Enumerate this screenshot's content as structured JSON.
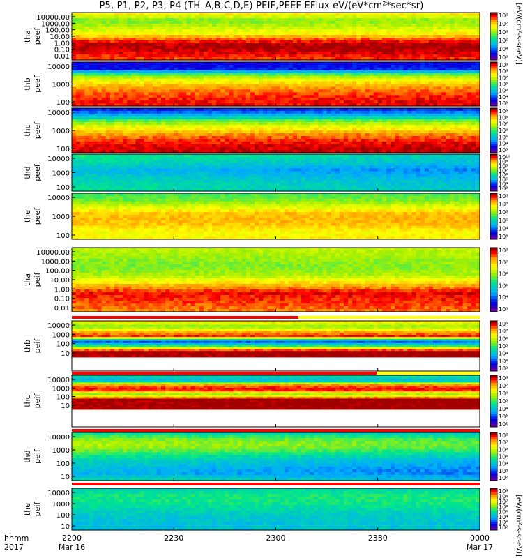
{
  "title": "P5, P1, P2, P3, P4 (TH–A,B,C,D,E) PEIF,PEEF EFlux eV/(eV*cm²*sec*sr)",
  "units_label": "[eV/(cm²-s-sr-eV)]",
  "x_axis": {
    "corner_labels": [
      "hhmm",
      "2017"
    ],
    "ticks": [
      {
        "time": "2200",
        "date": "Mar 16"
      },
      {
        "time": "2230",
        "date": ""
      },
      {
        "time": "2300",
        "date": ""
      },
      {
        "time": "2330",
        "date": ""
      },
      {
        "time": "0000",
        "date": "Mar 17"
      }
    ]
  },
  "chart_data": [
    {
      "type": "heatmap",
      "probe": "tha",
      "quantity": "peef",
      "ylabel": [
        "tha",
        "peef"
      ],
      "yscale": "log",
      "yticks": [
        "10000.00",
        "1000.00",
        "100.00",
        "10.00",
        "1.00",
        "0.10",
        "0.01"
      ],
      "colorbar_ticks": [
        "10⁸",
        "10⁷",
        "10⁶",
        "10⁵",
        "10⁴",
        "10³"
      ],
      "x_range": [
        "2200 Mar 16",
        "0000 Mar 17"
      ]
    },
    {
      "type": "heatmap",
      "probe": "thb",
      "quantity": "peef",
      "ylabel": [
        "thb",
        "peef"
      ],
      "yscale": "log",
      "yticks": [
        "10000",
        "1000",
        "100"
      ],
      "colorbar_ticks": [
        "10⁹",
        "10⁸",
        "10⁷",
        "10⁶",
        "10⁵",
        "10⁴",
        "10³"
      ],
      "x_range": [
        "2200 Mar 16",
        "0000 Mar 17"
      ]
    },
    {
      "type": "heatmap",
      "probe": "thc",
      "quantity": "peef",
      "ylabel": [
        "thc",
        "peef"
      ],
      "yscale": "log",
      "yticks": [
        "10000",
        "1000",
        "100"
      ],
      "colorbar_ticks": [
        "10⁹",
        "10⁸",
        "10⁷",
        "10⁶",
        "10⁵",
        "10⁴",
        "10³"
      ],
      "x_range": [
        "2200 Mar 16",
        "0000 Mar 17"
      ]
    },
    {
      "type": "heatmap",
      "probe": "thd",
      "quantity": "peef",
      "ylabel": [
        "thd",
        "peef"
      ],
      "yscale": "log",
      "yticks": [
        "10000",
        "1000",
        "100"
      ],
      "colorbar_ticks": [
        "10¹⁰",
        "10⁹",
        "10⁸",
        "10⁷",
        "10⁶",
        "10⁵",
        "10⁴",
        "10³"
      ],
      "x_range": [
        "2200 Mar 16",
        "0000 Mar 17"
      ]
    },
    {
      "type": "heatmap",
      "probe": "the",
      "quantity": "peef",
      "ylabel": [
        "the",
        "peef"
      ],
      "yscale": "log",
      "yticks": [
        "10000",
        "1000",
        "100"
      ],
      "colorbar_ticks": [
        "10⁸",
        "10⁷",
        "10⁶",
        "10⁵",
        "10⁴",
        "10³"
      ],
      "x_range": [
        "2200 Mar 16",
        "0000 Mar 17"
      ]
    },
    {
      "type": "heatmap",
      "probe": "tha",
      "quantity": "peif",
      "ylabel": [
        "tha",
        "peif"
      ],
      "yscale": "log",
      "yticks": [
        "10000.00",
        "1000.00",
        "100.00",
        "10.00",
        "1.00",
        "0.10",
        "0.01"
      ],
      "colorbar_ticks": [
        "10⁸",
        "10⁷",
        "10⁶",
        "10⁵",
        "10⁴",
        "10³"
      ],
      "x_range": [
        "2200 Mar 16",
        "0000 Mar 17"
      ]
    },
    {
      "type": "heatmap",
      "probe": "thb",
      "quantity": "peif",
      "ylabel": [
        "thb",
        "peif"
      ],
      "yscale": "log",
      "yticks": [
        "10000",
        "1000",
        "100",
        "10"
      ],
      "colorbar_ticks": [
        "10⁸",
        "10⁷",
        "10⁶",
        "10⁵",
        "10⁴",
        "10³",
        "10²"
      ],
      "x_range": [
        "2200 Mar 16",
        "0000 Mar 17"
      ]
    },
    {
      "type": "heatmap",
      "probe": "thc",
      "quantity": "peif",
      "ylabel": [
        "thc",
        "peif"
      ],
      "yscale": "log",
      "yticks": [
        "10000",
        "1000",
        "100",
        "10"
      ],
      "colorbar_ticks": [
        "10⁸",
        "10⁷",
        "10⁶",
        "10⁵",
        "10⁴",
        "10³",
        "10²"
      ],
      "x_range": [
        "2200 Mar 16",
        "0000 Mar 17"
      ]
    },
    {
      "type": "heatmap",
      "probe": "thd",
      "quantity": "peif",
      "ylabel": [
        "thd",
        "peif"
      ],
      "yscale": "log",
      "yticks": [
        "10000",
        "1000",
        "100",
        "10"
      ],
      "colorbar_ticks": [
        "10⁸",
        "10⁷",
        "10⁶",
        "10⁵",
        "10⁴",
        "10³",
        "10²"
      ],
      "x_range": [
        "2200 Mar 16",
        "0000 Mar 17"
      ]
    },
    {
      "type": "heatmap",
      "probe": "the",
      "quantity": "peif",
      "ylabel": [
        "the",
        "peif"
      ],
      "yscale": "log",
      "yticks": [
        "10000",
        "1000",
        "100",
        "10"
      ],
      "colorbar_ticks": [
        "10⁹",
        "10⁸",
        "10⁷",
        "10⁶",
        "10⁵",
        "10⁴",
        "10³",
        "10²"
      ],
      "x_range": [
        "2200 Mar 16",
        "0000 Mar 17"
      ]
    }
  ],
  "colors": {
    "low": "#6000a0",
    "high": "#a00000",
    "flag_red": "#ff0000",
    "flag_yellow": "#ffff00"
  }
}
